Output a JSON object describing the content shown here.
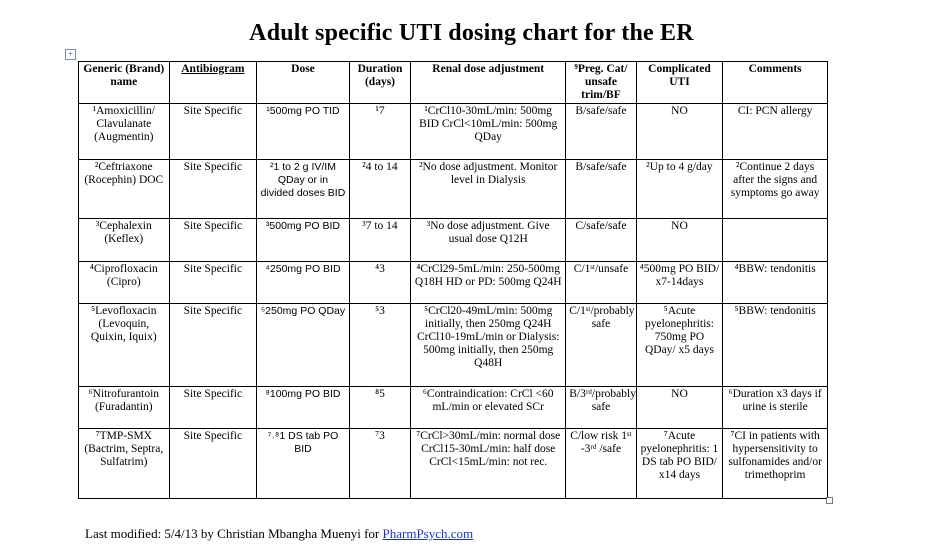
{
  "title": "Adult specific UTI dosing chart for the ER",
  "headers": [
    "Generic (Brand) name",
    "Antibiogram",
    "Dose",
    "Duration (days)",
    "Renal dose adjustment",
    "⁹Preg. Cat/ unsafe trim/BF",
    "Complicated UTI",
    "Comments"
  ],
  "rows": [
    {
      "name": "¹Amoxicillin/ Clavulanate (Augmentin)",
      "antibiogram": "Site Specific",
      "dose": "¹500mg PO TID",
      "duration": "¹7",
      "renal": "¹CrCl10-30mL/min: 500mg BID CrCl<10mL/min: 500mg QDay",
      "preg": "B/safe/safe",
      "complicated": "NO",
      "comments": "CI: PCN allergy"
    },
    {
      "name": "²Ceftriaxone (Rocephin) DOC",
      "antibiogram": "Site Specific",
      "dose": "²1 to 2 g IV/IM QDay or in divided doses BID",
      "duration": "²4 to 14",
      "renal": "²No dose adjustment. Monitor level in Dialysis",
      "preg": "B/safe/safe",
      "complicated": "²Up to 4 g/day",
      "comments": "²Continue 2 days after the signs and symptoms go away"
    },
    {
      "name": "³Cephalexin (Keflex)",
      "antibiogram": "Site Specific",
      "dose": "³500mg PO BID",
      "duration": "³7 to 14",
      "renal": "³No dose adjustment. Give usual dose Q12H",
      "preg": "C/safe/safe",
      "complicated": "NO",
      "comments": ""
    },
    {
      "name": "⁴Ciprofloxacin (Cipro)",
      "antibiogram": "Site Specific",
      "dose": "⁴250mg PO BID",
      "duration": "⁴3",
      "renal": "⁴CrCl29-5mL/min: 250-500mg Q18H HD or PD: 500mg Q24H",
      "preg": "C/1ˢᵗ/unsafe",
      "complicated": "⁴500mg PO BID/ x7-14days",
      "comments": "⁴BBW: tendonitis"
    },
    {
      "name": "⁵Levofloxacin (Levoquin, Quixin, Iquix)",
      "antibiogram": "Site Specific",
      "dose": "⁵250mg PO QDay",
      "duration": "⁵3",
      "renal": "⁵CrCl20-49mL/min: 500mg initially, then 250mg Q24H CrCl10-19mL/min or Dialysis: 500mg initially, then 250mg Q48H",
      "preg": "C/1ˢᵗ/probably safe",
      "complicated": "⁵Acute pyelonephritis: 750mg PO QDay/ x5 days",
      "comments": "⁵BBW: tendonitis"
    },
    {
      "name": "⁶Nitrofurantoin (Furadantin)",
      "antibiogram": "Site Specific",
      "dose": "⁸100mg PO BID",
      "duration": "⁸5",
      "renal": "⁶Contraindication: CrCl <60 mL/min or elevated SCr",
      "preg": "B/3ʳᵈ/probably safe",
      "complicated": "NO",
      "comments": "⁶Duration x3 days if urine is sterile"
    },
    {
      "name": "⁷TMP-SMX (Bactrim, Septra, Sulfatrim)",
      "antibiogram": "Site Specific",
      "dose": "⁷˒⁸1 DS tab PO BID",
      "duration": "⁷3",
      "renal": "⁷CrCl>30mL/min: normal dose CrCl15-30mL/min: half dose CrCl<15mL/min: not rec.",
      "preg": "C/low risk 1ˢᵗ -3ʳᵈ /safe",
      "complicated": "⁷Acute pyelonephritis: 1 DS tab PO BID/ x14 days",
      "comments": "⁷CI in patients with hypersensitivity to sulfonamides and/or trimethoprim"
    }
  ],
  "footer": {
    "text": "Last modified:  5/4/13 by Christian Mbangha Muenyi for ",
    "link": "PharmPsych.com"
  },
  "icons": {
    "anchor": "table-move-handle-icon",
    "resize": "table-resize-handle-icon"
  }
}
